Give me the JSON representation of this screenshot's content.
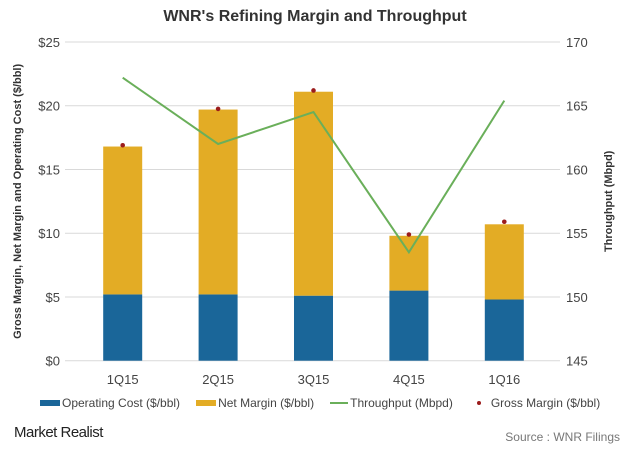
{
  "chart_data": {
    "type": "bar",
    "title": "WNR's Refining Margin and Throughput",
    "categories": [
      "1Q15",
      "2Q15",
      "3Q15",
      "4Q15",
      "1Q16"
    ],
    "ylabel": "Gross Margin, Net Margin and Operating Cost ($/bbl)",
    "y2label": "Throughput  (Mbpd)",
    "ylim": [
      0,
      25
    ],
    "y2lim": [
      145,
      170
    ],
    "yticks": [
      "$0",
      "$5",
      "$10",
      "$15",
      "$20",
      "$25"
    ],
    "y2ticks": [
      "145",
      "150",
      "155",
      "160",
      "165",
      "170"
    ],
    "grid": true,
    "legend_position": "bottom",
    "series": [
      {
        "name": "Operating Cost ($/bbl)",
        "type": "bar",
        "stack": true,
        "color": "#1a6699",
        "values": [
          5.2,
          5.2,
          5.1,
          5.5,
          4.8
        ]
      },
      {
        "name": "Net Margin ($/bbl)",
        "type": "bar",
        "stack": true,
        "color": "#e3ac25",
        "values": [
          11.6,
          14.5,
          16.0,
          4.3,
          5.9
        ]
      },
      {
        "name": "Throughput (Mbpd)",
        "type": "line",
        "axis": "right",
        "color": "#6aaf5a",
        "values": [
          167.2,
          162.0,
          164.5,
          153.5,
          165.4
        ]
      },
      {
        "name": "Gross Margin ($/bbl)",
        "type": "scatter",
        "color": "#9b1c1c",
        "values": [
          16.9,
          19.75,
          21.2,
          9.9,
          10.9
        ]
      }
    ]
  },
  "footer": {
    "logo": "Market Realist",
    "source": "Source : WNR Filings"
  }
}
